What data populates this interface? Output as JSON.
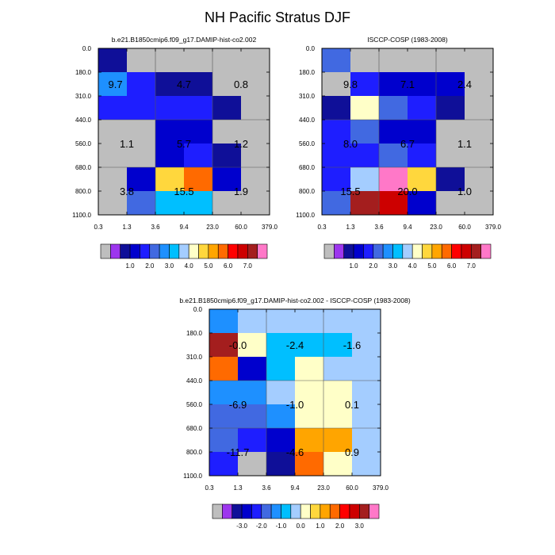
{
  "title": "NH Pacific Stratus DJF",
  "color_table": [
    "#bebebe",
    "#9d36ee",
    "#0f0f98",
    "#0000cd",
    "#1e1eff",
    "#4169e1",
    "#1e90ff",
    "#00bfff",
    "#a4cdff",
    "#ffffc8",
    "#ffd73d",
    "#ffa500",
    "#ff6a00",
    "#ff0000",
    "#cd0000",
    "#a41e1e",
    "#ff78c8"
  ],
  "chart_data": [
    {
      "type": "heatmap",
      "title": "b.e21.B1850cmip6.f09_g17.DAMIP-hist-co2.002",
      "x_ticks": [
        "0.3",
        "1.3",
        "3.6",
        "9.4",
        "23.0",
        "60.0",
        "379.0"
      ],
      "y_ticks": [
        "0.0",
        "180.0",
        "310.0",
        "440.0",
        "560.0",
        "680.0",
        "800.0",
        "1100.0"
      ],
      "colorbar_labels": [
        "1.0",
        "2.0",
        "3.0",
        "4.0",
        "5.0",
        "6.0",
        "7.0"
      ],
      "colorbar_levels": [
        0.5,
        1,
        1.5,
        2,
        2.5,
        3,
        3.5,
        4,
        4.5,
        5,
        5.5,
        6,
        6.5,
        7,
        7.5
      ],
      "cell_values": [
        [
          0.6,
          0,
          0,
          0,
          0,
          0
        ],
        [
          2.6,
          1.7,
          0.6,
          0.6,
          0,
          0
        ],
        [
          1.7,
          1.7,
          1.7,
          1.7,
          0.6,
          0
        ],
        [
          0,
          0,
          1.2,
          1.2,
          0,
          0
        ],
        [
          0,
          0,
          1.2,
          1.7,
          0.6,
          0
        ],
        [
          0,
          1.2,
          4.8,
          5.8,
          1.2,
          0
        ],
        [
          0,
          2.2,
          3.2,
          3.2,
          0,
          0
        ]
      ],
      "annotations": [
        {
          "value": "9.7",
          "col": 0.6,
          "row": 1.5
        },
        {
          "value": "4.7",
          "col": 3.0,
          "row": 1.5
        },
        {
          "value": "0.8",
          "col": 5.0,
          "row": 1.5
        },
        {
          "value": "1.1",
          "col": 1.0,
          "row": 4.0
        },
        {
          "value": "5.7",
          "col": 3.0,
          "row": 4.0
        },
        {
          "value": "1.2",
          "col": 5.0,
          "row": 4.0
        },
        {
          "value": "3.8",
          "col": 1.0,
          "row": 6.0
        },
        {
          "value": "15.5",
          "col": 3.0,
          "row": 6.0
        },
        {
          "value": "1.9",
          "col": 5.0,
          "row": 6.0
        }
      ]
    },
    {
      "type": "heatmap",
      "title": "ISCCP-COSP (1983-2008)",
      "x_ticks": [
        "0.3",
        "1.3",
        "3.6",
        "9.4",
        "23.0",
        "60.0",
        "379.0"
      ],
      "y_ticks": [
        "0.0",
        "180.0",
        "310.0",
        "440.0",
        "560.0",
        "680.0",
        "800.0",
        "1100.0"
      ],
      "colorbar_labels": [
        "1.0",
        "2.0",
        "3.0",
        "4.0",
        "5.0",
        "6.0",
        "7.0"
      ],
      "colorbar_levels": [
        0.5,
        1,
        1.5,
        2,
        2.5,
        3,
        3.5,
        4,
        4.5,
        5,
        5.5,
        6,
        6.5,
        7,
        7.5
      ],
      "cell_values": [
        [
          2.2,
          0,
          0,
          0,
          0,
          0
        ],
        [
          0,
          1.7,
          1.2,
          1.2,
          1.2,
          0
        ],
        [
          0.6,
          4.3,
          2.2,
          1.7,
          0.6,
          0
        ],
        [
          1.7,
          2.2,
          1.2,
          1.2,
          0,
          0
        ],
        [
          1.7,
          1.7,
          2.2,
          1.7,
          0,
          0
        ],
        [
          1.7,
          3.8,
          7.8,
          4.8,
          0.6,
          0
        ],
        [
          2.2,
          7.2,
          6.8,
          1.2,
          0,
          0
        ]
      ],
      "annotations": [
        {
          "value": "9.8",
          "col": 1.0,
          "row": 1.5
        },
        {
          "value": "7.1",
          "col": 3.0,
          "row": 1.5
        },
        {
          "value": "2.4",
          "col": 5.0,
          "row": 1.5
        },
        {
          "value": "8.0",
          "col": 1.0,
          "row": 4.0
        },
        {
          "value": "6.7",
          "col": 3.0,
          "row": 4.0
        },
        {
          "value": "1.1",
          "col": 5.0,
          "row": 4.0
        },
        {
          "value": "15.5",
          "col": 1.0,
          "row": 6.0
        },
        {
          "value": "20.0",
          "col": 3.0,
          "row": 6.0
        },
        {
          "value": "1.0",
          "col": 5.0,
          "row": 6.0
        }
      ]
    },
    {
      "type": "heatmap",
      "title": "b.e21.B1850cmip6.f09_g17.DAMIP-hist-co2.002 - ISCCP-COSP (1983-2008)",
      "x_ticks": [
        "0.3",
        "1.3",
        "3.6",
        "9.4",
        "23.0",
        "60.0",
        "379.0"
      ],
      "y_ticks": [
        "0.0",
        "180.0",
        "310.0",
        "440.0",
        "560.0",
        "680.0",
        "800.0",
        "1100.0"
      ],
      "colorbar_labels": [
        "-3.0",
        "-2.0",
        "-1.0",
        "0.0",
        "1.0",
        "2.0",
        "3.0"
      ],
      "colorbar_levels": [
        -3.5,
        -3,
        -2.5,
        -2,
        -1.5,
        -1,
        -0.5,
        0,
        0.5,
        1,
        1.5,
        2,
        2.5,
        3,
        3.5
      ],
      "cell_values": [
        [
          -1.2,
          -0.2,
          -0.2,
          -0.2,
          -0.2,
          -0.2
        ],
        [
          3.2,
          0.2,
          -0.8,
          -0.8,
          -0.8,
          -0.2
        ],
        [
          1.7,
          -2.7,
          -0.8,
          0.2,
          -0.2,
          -0.2
        ],
        [
          -1.2,
          -1.2,
          -0.2,
          0.2,
          0.2,
          -0.2
        ],
        [
          -1.7,
          -1.7,
          -1.2,
          0.2,
          0.2,
          -0.2
        ],
        [
          -1.7,
          -2.2,
          -2.7,
          1.2,
          1.2,
          -0.2
        ],
        [
          -2.2,
          0,
          -3.2,
          1.7,
          0.2,
          -0.2
        ]
      ],
      "annotations": [
        {
          "value": "-0.0",
          "col": 1.0,
          "row": 1.5
        },
        {
          "value": "-2.4",
          "col": 3.0,
          "row": 1.5
        },
        {
          "value": "-1.6",
          "col": 5.0,
          "row": 1.5
        },
        {
          "value": "-6.9",
          "col": 1.0,
          "row": 4.0
        },
        {
          "value": "-1.0",
          "col": 3.0,
          "row": 4.0
        },
        {
          "value": "0.1",
          "col": 5.0,
          "row": 4.0
        },
        {
          "value": "-11.7",
          "col": 1.0,
          "row": 6.0
        },
        {
          "value": "-4.6",
          "col": 3.0,
          "row": 6.0
        },
        {
          "value": "0.9",
          "col": 5.0,
          "row": 6.0
        }
      ]
    }
  ]
}
